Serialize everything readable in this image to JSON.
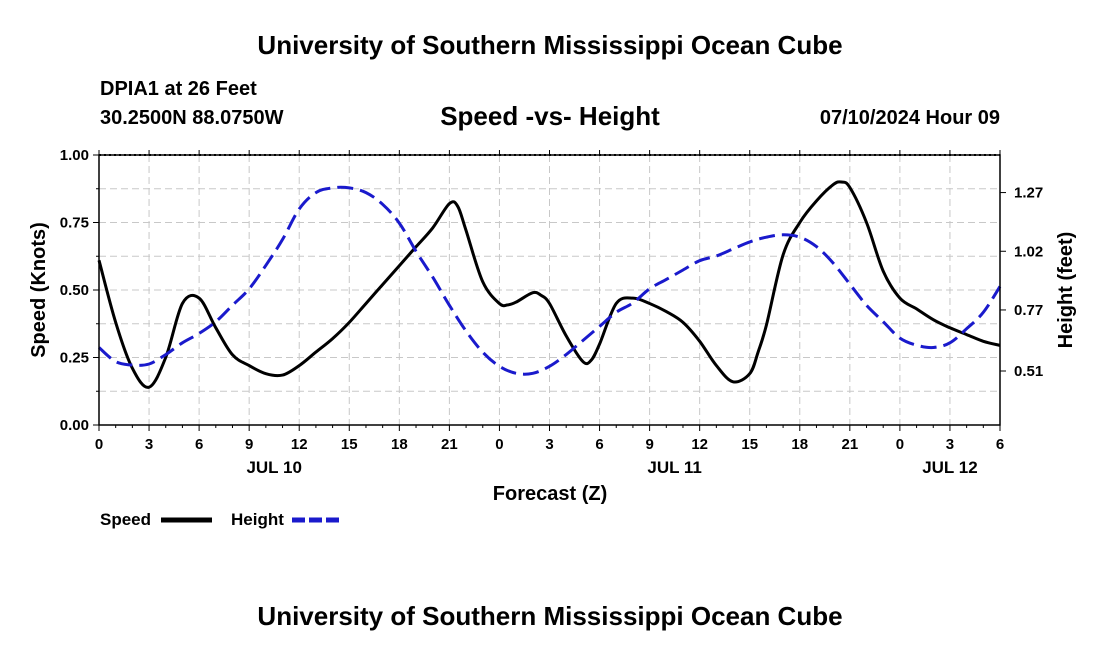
{
  "header": {
    "title": "University of Southern Mississippi Ocean Cube",
    "station": "DPIA1 at 26 Feet",
    "location": "30.2500N  88.0750W",
    "timestamp": "07/10/2024 Hour 09",
    "footer_title": "University of Southern Mississippi Ocean Cube"
  },
  "colors": {
    "speed": "#000000",
    "height": "#1a1acc",
    "grid": "#c8c8c8"
  },
  "chart_data": {
    "type": "line",
    "title": "Speed -vs- Height",
    "xlabel": "Forecast (Z)",
    "ylabel": "Speed (Knots)",
    "ylabel_right": "Height (feet)",
    "x_range": [
      0,
      54
    ],
    "x_unit": "hours since 00Z JUL 10",
    "x_tick_labels": [
      "0",
      "3",
      "6",
      "9",
      "12",
      "15",
      "18",
      "21",
      "0",
      "3",
      "6",
      "9",
      "12",
      "15",
      "18",
      "21",
      "0",
      "3",
      "6"
    ],
    "date_labels": [
      {
        "x": 10.5,
        "label": "JUL 10"
      },
      {
        "x": 34.5,
        "label": "JUL 11"
      },
      {
        "x": 51,
        "label": "JUL 12"
      }
    ],
    "ylim": [
      0,
      1
    ],
    "y_ticks": [
      "0.00",
      "0.25",
      "0.50",
      "0.75",
      "1.00"
    ],
    "ylim_right": [
      0.28,
      1.43
    ],
    "y_ticks_right": [
      "0.51",
      "0.77",
      "1.02",
      "1.27"
    ],
    "legend": [
      {
        "name": "Speed",
        "style": "solid"
      },
      {
        "name": "Height",
        "style": "dashed"
      }
    ],
    "series": [
      {
        "name": "Speed",
        "axis": "left",
        "x": [
          0,
          1,
          2,
          3,
          4,
          5,
          6,
          7,
          8,
          9,
          10,
          11,
          12,
          13,
          14,
          15,
          16,
          17,
          18,
          19,
          20,
          21,
          21.5,
          22,
          23,
          24,
          24.5,
          25,
          26,
          26.5,
          27,
          28,
          29,
          29.5,
          30,
          31,
          32,
          33,
          34,
          35,
          36,
          37,
          38,
          39,
          39.5,
          40,
          41,
          42,
          43,
          44,
          44.5,
          45,
          46,
          47,
          48,
          49,
          50,
          51,
          52,
          53,
          54
        ],
        "values": [
          0.61,
          0.38,
          0.21,
          0.14,
          0.25,
          0.45,
          0.47,
          0.36,
          0.26,
          0.22,
          0.19,
          0.185,
          0.22,
          0.27,
          0.32,
          0.38,
          0.45,
          0.52,
          0.59,
          0.66,
          0.73,
          0.82,
          0.81,
          0.72,
          0.53,
          0.45,
          0.445,
          0.455,
          0.49,
          0.48,
          0.45,
          0.33,
          0.235,
          0.24,
          0.3,
          0.45,
          0.47,
          0.45,
          0.42,
          0.38,
          0.31,
          0.22,
          0.16,
          0.19,
          0.27,
          0.37,
          0.63,
          0.75,
          0.83,
          0.89,
          0.9,
          0.88,
          0.75,
          0.57,
          0.47,
          0.43,
          0.39,
          0.36,
          0.335,
          0.31,
          0.295
        ]
      },
      {
        "name": "Height",
        "axis": "right",
        "x": [
          0,
          1,
          2,
          3,
          4,
          5,
          6,
          7,
          8,
          9,
          10,
          11,
          12,
          13,
          14,
          15,
          16,
          17,
          18,
          19,
          20,
          21,
          22,
          23,
          24,
          25,
          26,
          27,
          28,
          29,
          30,
          31,
          32,
          33,
          34,
          35,
          36,
          37,
          38,
          39,
          40,
          41,
          42,
          43,
          44,
          45,
          46,
          47,
          48,
          49,
          50,
          51,
          52,
          53,
          54
        ],
        "values": [
          0.61,
          0.55,
          0.535,
          0.54,
          0.58,
          0.63,
          0.67,
          0.72,
          0.79,
          0.86,
          0.96,
          1.07,
          1.2,
          1.27,
          1.29,
          1.29,
          1.27,
          1.22,
          1.14,
          1.02,
          0.91,
          0.79,
          0.68,
          0.59,
          0.53,
          0.5,
          0.5,
          0.53,
          0.58,
          0.64,
          0.7,
          0.76,
          0.8,
          0.86,
          0.9,
          0.94,
          0.98,
          1.0,
          1.03,
          1.06,
          1.08,
          1.09,
          1.08,
          1.04,
          0.97,
          0.88,
          0.79,
          0.72,
          0.65,
          0.62,
          0.61,
          0.63,
          0.69,
          0.76,
          0.87
        ]
      }
    ]
  }
}
